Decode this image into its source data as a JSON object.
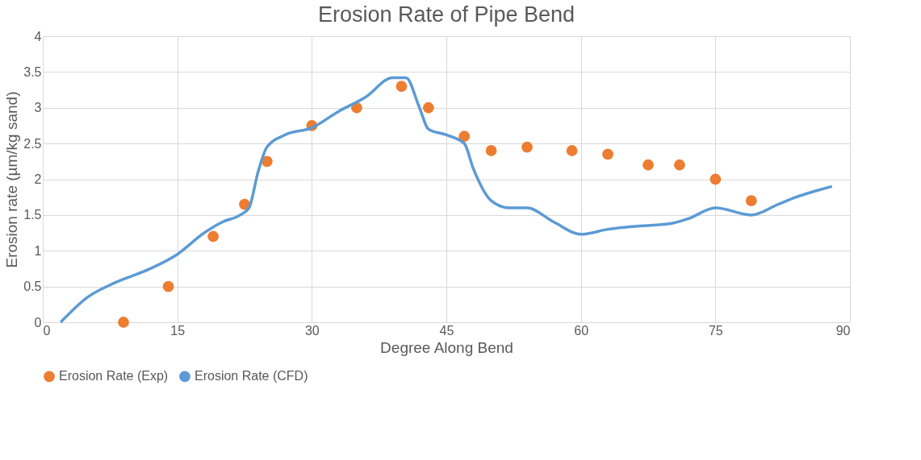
{
  "chart_data": {
    "type": "scatter",
    "title": "Erosion Rate of Pipe Bend",
    "xlabel": "Degree Along Bend",
    "ylabel": "Erosion rate (µm/kg sand)",
    "xlim": [
      0,
      90
    ],
    "xticks": [
      0,
      15,
      30,
      45,
      60,
      75,
      90
    ],
    "ylim": [
      0,
      4
    ],
    "yticks": [
      0,
      0.5,
      1,
      1.5,
      2,
      2.5,
      3,
      3.5,
      4
    ],
    "grid": true,
    "legend": "bottom",
    "series": [
      {
        "name": "Erosion Rate (Exp)",
        "marker": "circle",
        "color": "#ed7d31",
        "x": [
          9,
          14,
          19,
          22.5,
          25,
          30,
          35,
          40,
          43,
          47,
          50,
          54,
          59,
          63,
          67.5,
          71,
          75,
          79
        ],
        "values": [
          0,
          0.5,
          1.2,
          1.65,
          2.25,
          2.75,
          3.0,
          3.3,
          3.0,
          2.6,
          2.4,
          2.45,
          2.4,
          2.35,
          2.2,
          2.2,
          2.0,
          1.7
        ]
      },
      {
        "name": "Erosion Rate (CFD)",
        "type": "line",
        "marker": "none",
        "line_style": "solid",
        "color": "#5b9bd5",
        "x": [
          2,
          5,
          8,
          12,
          15,
          18,
          20,
          22,
          23,
          24,
          25,
          27,
          30,
          33,
          36,
          39,
          40.5,
          42,
          43,
          45,
          47,
          48,
          50,
          52,
          54,
          57,
          60,
          63,
          67,
          70,
          72,
          75,
          79,
          82,
          84,
          88
        ],
        "values": [
          0,
          0.35,
          0.55,
          0.75,
          0.95,
          1.25,
          1.4,
          1.5,
          1.6,
          2.1,
          2.45,
          2.62,
          2.72,
          2.95,
          3.15,
          3.42,
          3.42,
          3.0,
          2.7,
          2.62,
          2.5,
          2.15,
          1.7,
          1.6,
          1.6,
          1.4,
          1.23,
          1.3,
          1.35,
          1.38,
          1.45,
          1.6,
          1.5,
          1.65,
          1.75,
          1.9
        ]
      }
    ]
  }
}
